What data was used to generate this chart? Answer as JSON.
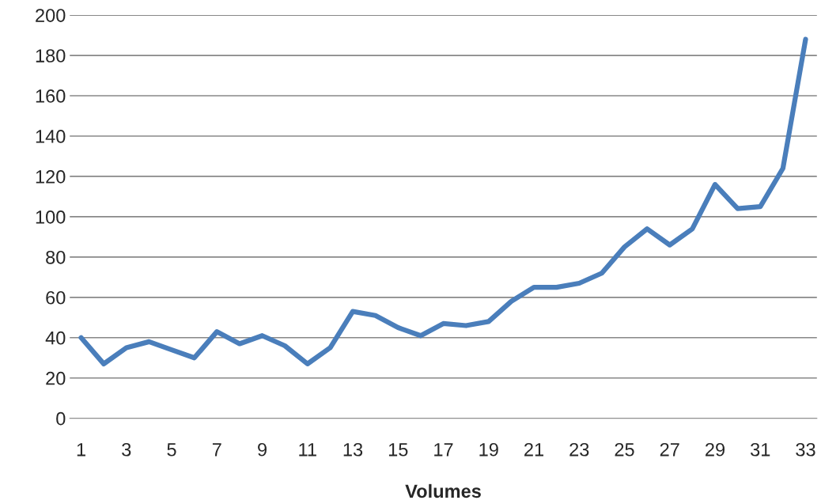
{
  "chart_data": {
    "type": "line",
    "xlabel": "Volumes",
    "categories": [
      "1",
      null,
      "3",
      null,
      "5",
      null,
      "7",
      null,
      "9",
      null,
      "11",
      null,
      "13",
      null,
      "15",
      null,
      "17",
      null,
      "19",
      null,
      "21",
      null,
      "23",
      null,
      "25",
      null,
      "27",
      null,
      "29",
      null,
      "31",
      null,
      "33"
    ],
    "series": [
      {
        "color": "#4a7ebb",
        "values": [
          40,
          27,
          35,
          38,
          34,
          30,
          43,
          37,
          41,
          36,
          27,
          35,
          53,
          51,
          45,
          41,
          47,
          46,
          48,
          58,
          65,
          65,
          67,
          72,
          85,
          94,
          86,
          94,
          116,
          104,
          105,
          124,
          188
        ]
      }
    ],
    "ylim": [
      0,
      200
    ],
    "yticks": [
      0,
      20,
      40,
      60,
      80,
      100,
      120,
      140,
      160,
      180,
      200
    ],
    "grid": "y",
    "marker": "none",
    "line_style": "solid"
  }
}
